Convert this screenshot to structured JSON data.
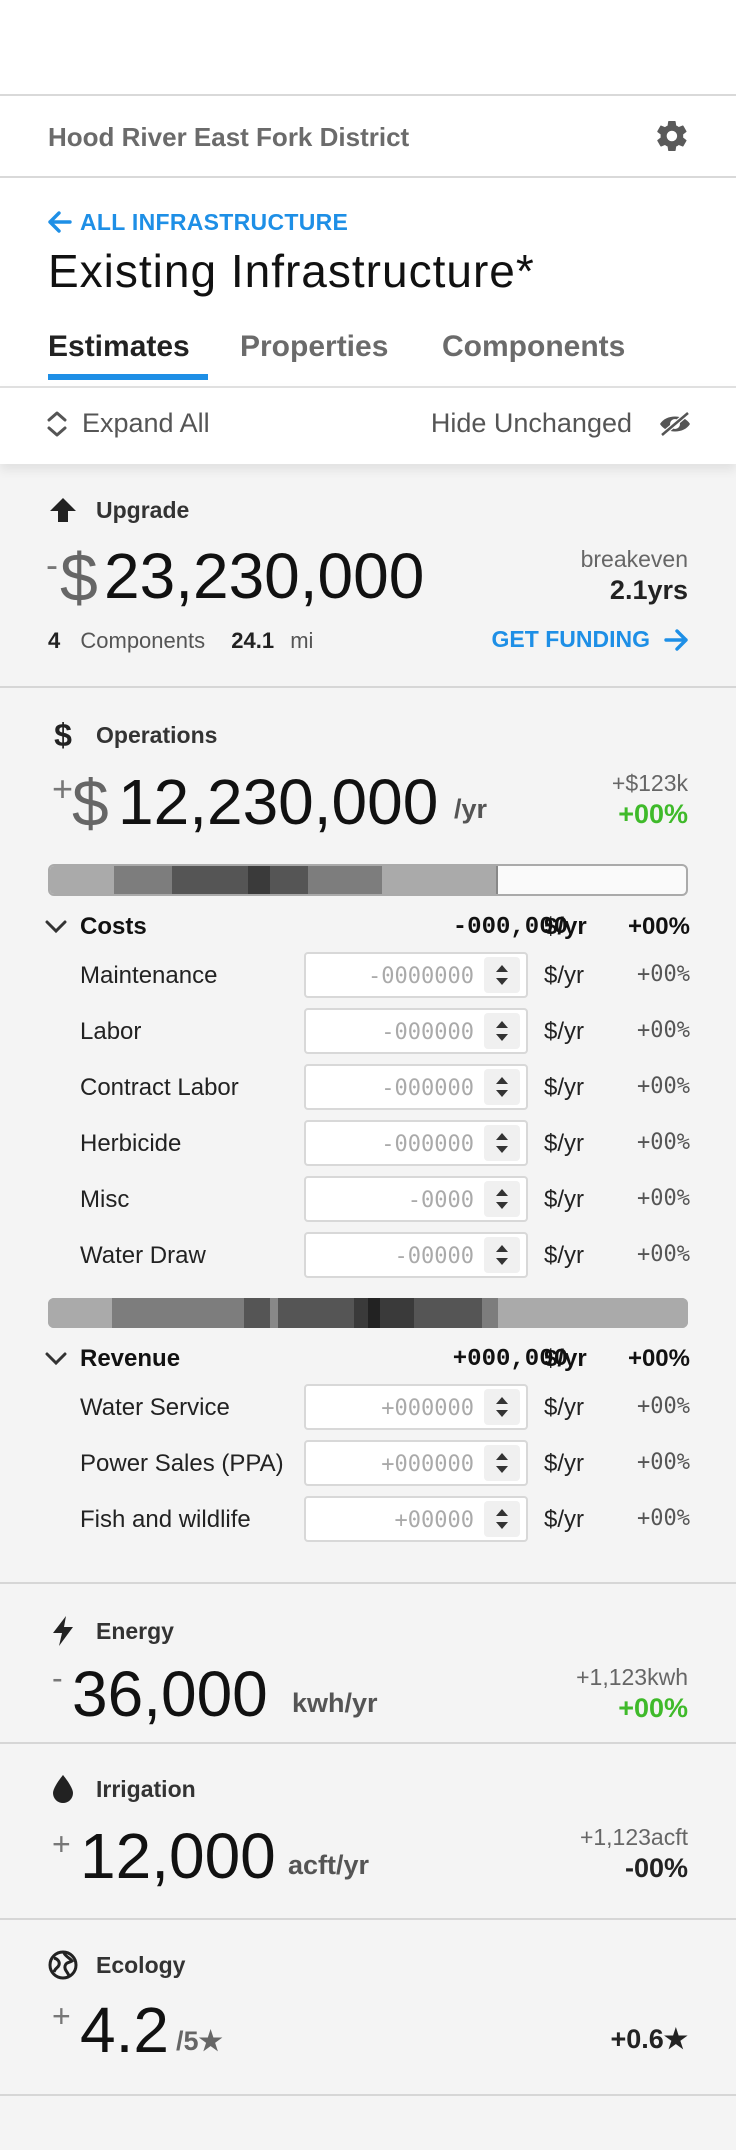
{
  "header": {
    "district": "Hood River East Fork District"
  },
  "nav": {
    "back_label": "ALL INFRASTRUCTURE",
    "page_title": "Existing Infrastructure*"
  },
  "tabs": [
    {
      "label": "Estimates",
      "active": true
    },
    {
      "label": "Properties",
      "active": false
    },
    {
      "label": "Components",
      "active": false
    }
  ],
  "toolbar": {
    "expand_label": "Expand All",
    "hide_label": "Hide Unchanged"
  },
  "upgrade": {
    "title": "Upgrade",
    "sign": "-",
    "currency": "$",
    "amount": "23,230,000",
    "breakeven_label": "breakeven",
    "breakeven_value": "2.1yrs",
    "components_count": "4",
    "components_label": "Components",
    "distance": "24.1",
    "distance_unit": "mi",
    "funding_label": "GET FUNDING"
  },
  "operations": {
    "title": "Operations",
    "sign": "+",
    "currency": "$",
    "amount": "12,230,000",
    "unit": "/yr",
    "delta": "+$123k",
    "pct": "+00%",
    "costs": {
      "label": "Costs",
      "value": "-000,000",
      "unit": "$/yr",
      "pct": "+00%",
      "rows": [
        {
          "label": "Maintenance",
          "value": "-0000000",
          "unit": "$/yr",
          "pct": "+00%"
        },
        {
          "label": "Labor",
          "value": "-000000",
          "unit": "$/yr",
          "pct": "+00%"
        },
        {
          "label": "Contract Labor",
          "value": "-000000",
          "unit": "$/yr",
          "pct": "+00%"
        },
        {
          "label": "Herbicide",
          "value": "-000000",
          "unit": "$/yr",
          "pct": "+00%"
        },
        {
          "label": "Misc",
          "value": "-0000",
          "unit": "$/yr",
          "pct": "+00%"
        },
        {
          "label": "Water Draw",
          "value": "-00000",
          "unit": "$/yr",
          "pct": "+00%"
        }
      ]
    },
    "revenue": {
      "label": "Revenue",
      "value": "+000,000",
      "unit": "$/yr",
      "pct": "+00%",
      "rows": [
        {
          "label": "Water Service",
          "value": "+000000",
          "unit": "$/yr",
          "pct": "+00%"
        },
        {
          "label": "Power Sales (PPA)",
          "value": "+000000",
          "unit": "$/yr",
          "pct": "+00%"
        },
        {
          "label": "Fish and wildlife",
          "value": "+00000",
          "unit": "$/yr",
          "pct": "+00%"
        }
      ]
    }
  },
  "energy": {
    "title": "Energy",
    "sign": "-",
    "amount": "36,000",
    "unit": "kwh/yr",
    "delta": "+1,123kwh",
    "pct": "+00%"
  },
  "irrigation": {
    "title": "Irrigation",
    "sign": "+",
    "amount": "12,000",
    "unit": "acft/yr",
    "delta": "+1,123acft",
    "pct": "-00%"
  },
  "ecology": {
    "title": "Ecology",
    "sign": "+",
    "amount": "4.2",
    "unit": "/5★",
    "delta": "+0.6★"
  },
  "colors": {
    "accent": "#1e8fe6",
    "positive": "#3fba2a"
  }
}
